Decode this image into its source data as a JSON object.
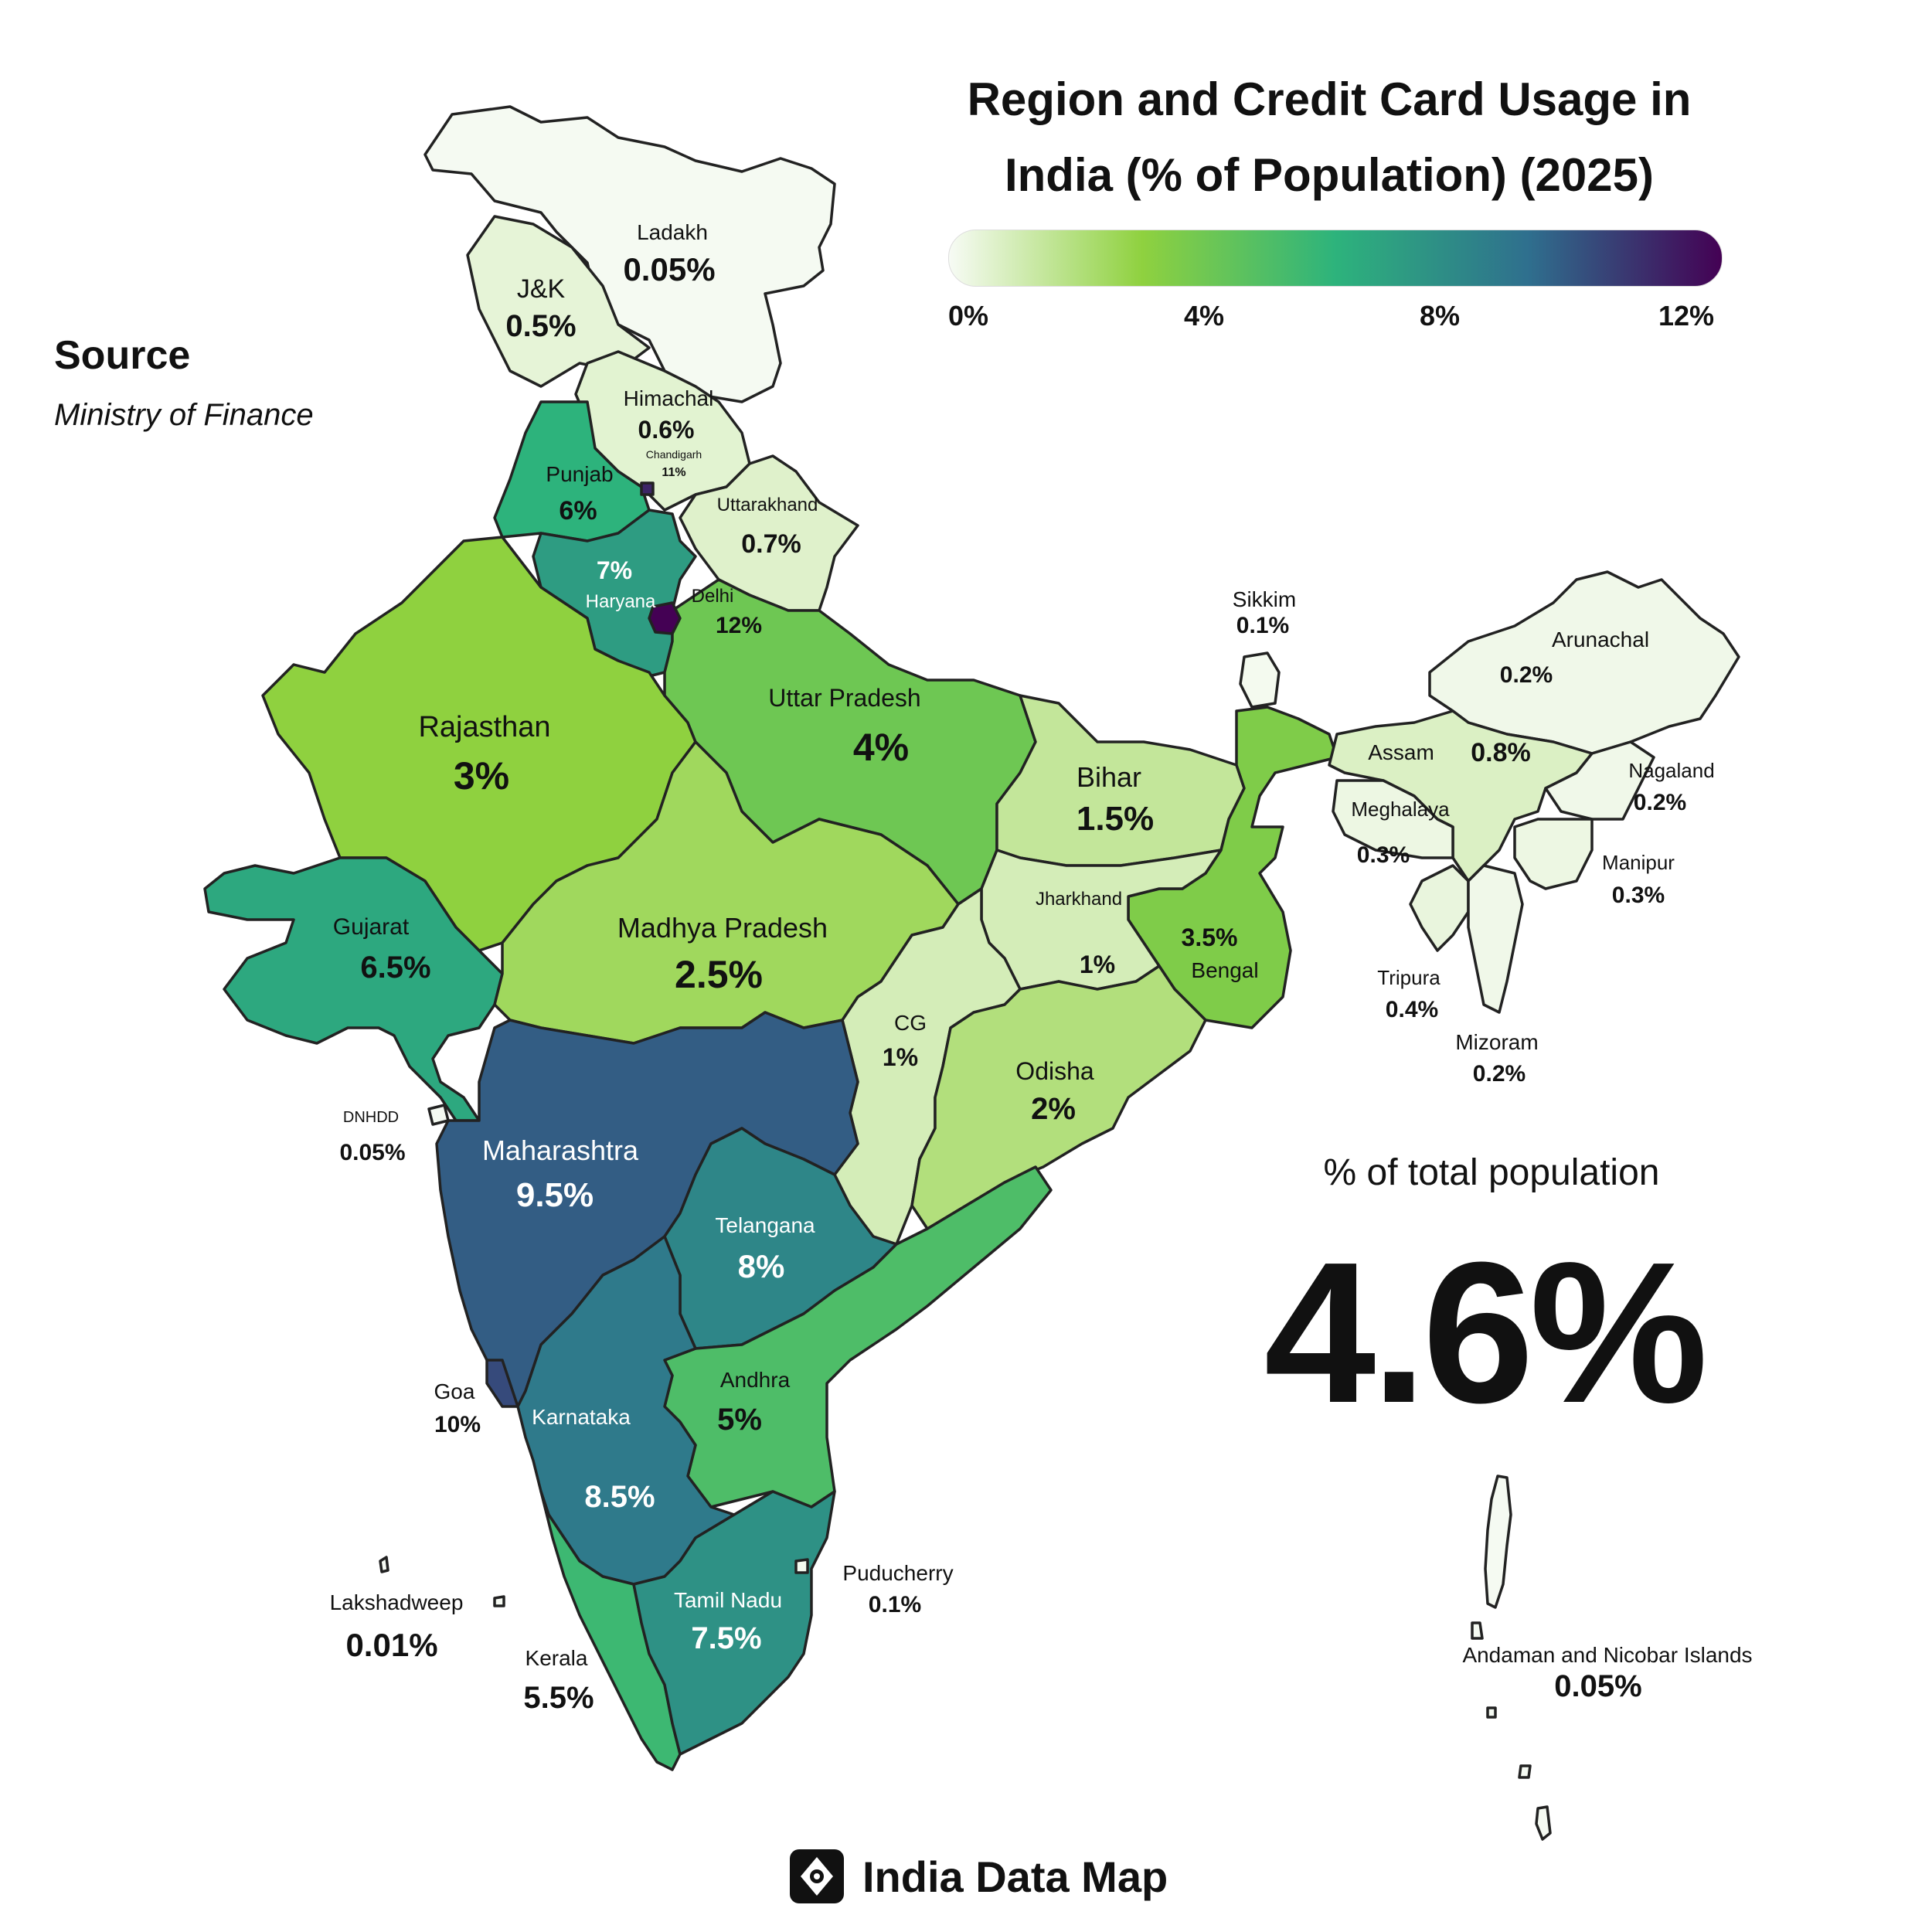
{
  "title": {
    "line1": "Region and Credit Card Usage in",
    "line2": "India (% of Population) (2025)"
  },
  "legend": {
    "ticks": [
      "0%",
      "4%",
      "8%",
      "12%"
    ],
    "colors": [
      "#f7fbf5",
      "#8fd13f",
      "#2db37c",
      "#2f6f8e",
      "#440154"
    ]
  },
  "source": {
    "heading": "Source",
    "text": "Ministry of Finance"
  },
  "summary": {
    "label": "% of total population",
    "value": "4.6%"
  },
  "brand": {
    "name": "India Data Map"
  },
  "regions": [
    {
      "id": "ladakh",
      "name": "Ladakh",
      "value": "0.05%",
      "pct": 0.05
    },
    {
      "id": "jk",
      "name": "J&K",
      "value": "0.5%",
      "pct": 0.5
    },
    {
      "id": "himachal",
      "name": "Himachal",
      "value": "0.6%",
      "pct": 0.6
    },
    {
      "id": "chandigarh",
      "name": "Chandigarh",
      "value": "11%",
      "pct": 11
    },
    {
      "id": "punjab",
      "name": "Punjab",
      "value": "6%",
      "pct": 6
    },
    {
      "id": "uttarakhand",
      "name": "Uttarakhand",
      "value": "0.7%",
      "pct": 0.7
    },
    {
      "id": "haryana",
      "name": "Haryana",
      "value": "7%",
      "pct": 7
    },
    {
      "id": "delhi",
      "name": "Delhi",
      "value": "12%",
      "pct": 12
    },
    {
      "id": "rajasthan",
      "name": "Rajasthan",
      "value": "3%",
      "pct": 3
    },
    {
      "id": "up",
      "name": "Uttar Pradesh",
      "value": "4%",
      "pct": 4
    },
    {
      "id": "bihar",
      "name": "Bihar",
      "value": "1.5%",
      "pct": 1.5
    },
    {
      "id": "sikkim",
      "name": "Sikkim",
      "value": "0.1%",
      "pct": 0.1
    },
    {
      "id": "arunachal",
      "name": "Arunachal",
      "value": "0.2%",
      "pct": 0.2
    },
    {
      "id": "assam",
      "name": "Assam",
      "value": "0.8%",
      "pct": 0.8
    },
    {
      "id": "meghalaya",
      "name": "Meghalaya",
      "value": "0.3%",
      "pct": 0.3
    },
    {
      "id": "nagaland",
      "name": "Nagaland",
      "value": "0.2%",
      "pct": 0.2
    },
    {
      "id": "manipur",
      "name": "Manipur",
      "value": "0.3%",
      "pct": 0.3
    },
    {
      "id": "tripura",
      "name": "Tripura",
      "value": "0.4%",
      "pct": 0.4
    },
    {
      "id": "mizoram",
      "name": "Mizoram",
      "value": "0.2%",
      "pct": 0.2
    },
    {
      "id": "gujarat",
      "name": "Gujarat",
      "value": "6.5%",
      "pct": 6.5
    },
    {
      "id": "mp",
      "name": "Madhya Pradesh",
      "value": "2.5%",
      "pct": 2.5
    },
    {
      "id": "jharkhand",
      "name": "Jharkhand",
      "value": "1%",
      "pct": 1
    },
    {
      "id": "bengal",
      "name": "Bengal",
      "value": "3.5%",
      "pct": 3.5
    },
    {
      "id": "cg",
      "name": "CG",
      "value": "1%",
      "pct": 1
    },
    {
      "id": "odisha",
      "name": "Odisha",
      "value": "2%",
      "pct": 2
    },
    {
      "id": "dnhdd",
      "name": "DNHDD",
      "value": "0.05%",
      "pct": 0.05
    },
    {
      "id": "maharashtra",
      "name": "Maharashtra",
      "value": "9.5%",
      "pct": 9.5
    },
    {
      "id": "telangana",
      "name": "Telangana",
      "value": "8%",
      "pct": 8
    },
    {
      "id": "goa",
      "name": "Goa",
      "value": "10%",
      "pct": 10
    },
    {
      "id": "andhra",
      "name": "Andhra",
      "value": "5%",
      "pct": 5
    },
    {
      "id": "karnataka",
      "name": "Karnataka",
      "value": "8.5%",
      "pct": 8.5
    },
    {
      "id": "lakshadweep",
      "name": "Lakshadweep",
      "value": "0.01%",
      "pct": 0.01
    },
    {
      "id": "kerala",
      "name": "Kerala",
      "value": "5.5%",
      "pct": 5.5
    },
    {
      "id": "tn",
      "name": "Tamil Nadu",
      "value": "7.5%",
      "pct": 7.5
    },
    {
      "id": "puducherry",
      "name": "Puducherry",
      "value": "0.1%",
      "pct": 0.1
    },
    {
      "id": "andaman",
      "name": "Andaman and Nicobar Islands",
      "value": "0.05%",
      "pct": 0.05
    }
  ]
}
